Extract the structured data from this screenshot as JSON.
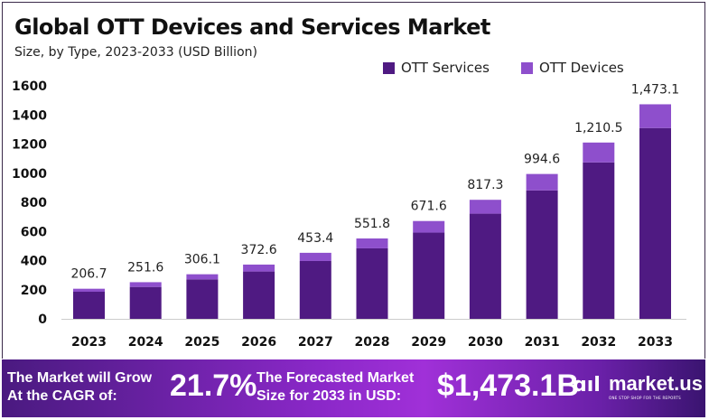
{
  "chart_data": {
    "type": "bar",
    "stacked": true,
    "title": "Global OTT Devices and Services Market",
    "subtitle": "Size, by Type, 2023-2033 (USD Billion)",
    "categories": [
      "2023",
      "2024",
      "2025",
      "2026",
      "2027",
      "2028",
      "2029",
      "2030",
      "2031",
      "2032",
      "2033"
    ],
    "series": [
      {
        "name": "OTT Services",
        "color": "#4f1a82",
        "values": [
          186,
          219,
          271,
          325,
          397,
          484,
          592,
          722,
          882,
          1074,
          1310
        ]
      },
      {
        "name": "OTT Devices",
        "color": "#8e4fcc",
        "values": [
          20.7,
          32.6,
          35.1,
          47.6,
          56.4,
          67.8,
          79.6,
          95.3,
          112.6,
          136.5,
          163.1
        ]
      }
    ],
    "totals": [
      "206.7",
      "251.6",
      "306.1",
      "372.6",
      "453.4",
      "551.8",
      "671.6",
      "817.3",
      "994.6",
      "1,210.5",
      "1,473.1"
    ],
    "ylim": [
      0,
      1600
    ],
    "yticks": [
      "0",
      "200",
      "400",
      "600",
      "800",
      "1000",
      "1200",
      "1400",
      "1600"
    ],
    "grid": false,
    "legend": "top-right"
  },
  "footer": {
    "cagr_label_1": "The Market will Grow",
    "cagr_label_2": "At the CAGR of:",
    "cagr_value": "21.7%",
    "forecast_label_1": "The Forecasted Market",
    "forecast_label_2": "Size for 2033 in USD:",
    "forecast_value": "$1,473.1B",
    "brand": "market.us",
    "brand_tagline": "ONE STOP SHOP FOR THE REPORTS"
  }
}
